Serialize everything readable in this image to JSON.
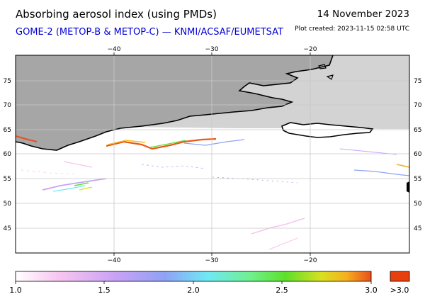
{
  "header": {
    "title": "Absorbing aerosol index (using PMDs)",
    "subtitle": "GOME-2 (METOP-B & METOP-C) — KNMI/ACSAF/EUMETSAT",
    "date": "14 November 2023",
    "created": "Plot created: 2023-11-15 02:58 UTC"
  },
  "map": {
    "lon_ticks": [
      "−40",
      "−30",
      "−20"
    ],
    "lat_ticks": [
      "75",
      "70",
      "65",
      "60",
      "55",
      "50",
      "45"
    ],
    "colors": {
      "land_shade": "#a9a9a9",
      "ocean_shade": "#d3d3d3",
      "grid": "#c8c8c8",
      "coast": "#000000"
    }
  },
  "colorbar": {
    "tick_labels": [
      "1.0",
      "1.5",
      "2.0",
      "2.5",
      "3.0"
    ],
    "over_label": ">3.0",
    "colors": [
      "#ffffff",
      "#f7c6f0",
      "#c9a2f5",
      "#8fa2f5",
      "#6fe9f5",
      "#6ff08f",
      "#5ee02a",
      "#d9e020",
      "#f5b020",
      "#e8501a"
    ],
    "over_color": "#e8400c"
  }
}
